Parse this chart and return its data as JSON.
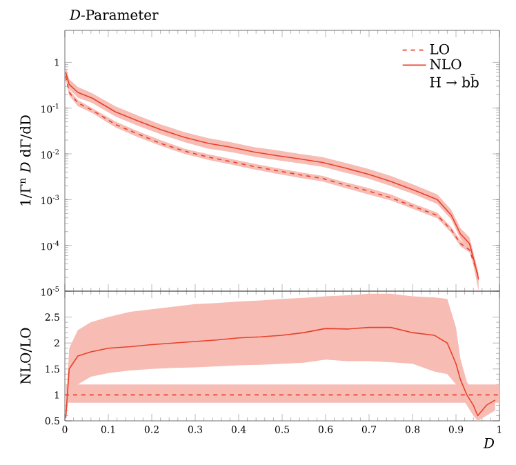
{
  "chart_data": [
    {
      "type": "line",
      "title": "*D*-Parameter",
      "ylabel": "1/Γ$^{n}$ *D* dΓ/dD",
      "log": "y",
      "legend": "top right",
      "tick_labels": "y",
      "annotations": [
        "H → bb̄"
      ],
      "xlim": [
        0,
        1
      ],
      "xticks": [
        0,
        0.1,
        0.2,
        0.3,
        0.4,
        0.5,
        0.6,
        0.7,
        0.8,
        0.9,
        1
      ],
      "ylim": [
        1e-05,
        5
      ],
      "yticks": [
        {
          "value": 1e-05,
          "label": "10$^{-5}$"
        },
        {
          "value": 0.0001,
          "label": "10$^{-4}$"
        },
        {
          "value": 0.001,
          "label": "10$^{-3}$"
        },
        {
          "value": 0.01,
          "label": "10$^{-2}$"
        },
        {
          "value": 0.1,
          "label": "10$^{-1}$"
        },
        1
      ],
      "x": [
        0.002,
        0.01,
        0.03,
        0.063,
        0.116,
        0.169,
        0.22,
        0.275,
        0.33,
        0.381,
        0.435,
        0.487,
        0.54,
        0.593,
        0.645,
        0.698,
        0.75,
        0.804,
        0.857,
        0.889,
        0.91,
        0.931,
        0.942,
        0.952
      ],
      "series": [
        {
          "name": "LO",
          "color": "#e8412a",
          "line_style": "dashed",
          "values": [
            0.5,
            0.22,
            0.13,
            0.09,
            0.044,
            0.027,
            0.017,
            0.0115,
            0.0085,
            0.0068,
            0.0053,
            0.0043,
            0.0035,
            0.0029,
            0.0021,
            0.00155,
            0.0011,
            0.0007,
            0.00045,
            0.00022,
            0.00011,
            8e-05,
            4e-05,
            2e-05
          ],
          "lower": [
            0.43,
            0.19,
            0.11,
            0.078,
            0.038,
            0.023,
            0.015,
            0.01,
            0.0074,
            0.0059,
            0.0046,
            0.0037,
            0.003,
            0.0025,
            0.0018,
            0.0013,
            0.00096,
            0.00061,
            0.00039,
            0.00019,
            9.6e-05,
            7e-05,
            3.5e-05,
            1.7e-05
          ],
          "upper": [
            0.58,
            0.25,
            0.15,
            0.1,
            0.051,
            0.031,
            0.02,
            0.013,
            0.0098,
            0.0078,
            0.0061,
            0.0049,
            0.004,
            0.0033,
            0.0024,
            0.0018,
            0.0013,
            0.0008,
            0.00052,
            0.00025,
            0.00013,
            9e-05,
            4.6e-05,
            2.3e-05
          ]
        },
        {
          "name": "NLO",
          "color": "#e8412a",
          "line_style": "solid",
          "values": [
            0.6,
            0.33,
            0.22,
            0.165,
            0.083,
            0.052,
            0.034,
            0.023,
            0.017,
            0.014,
            0.011,
            0.0092,
            0.0078,
            0.0065,
            0.0049,
            0.0036,
            0.0025,
            0.0016,
            0.001,
            0.00046,
            0.00018,
            0.00011,
            4.5e-05,
            1.8e-05
          ],
          "lower": [
            0.48,
            0.26,
            0.17,
            0.13,
            0.066,
            0.041,
            0.027,
            0.018,
            0.013,
            0.011,
            0.0087,
            0.0073,
            0.0062,
            0.0052,
            0.0039,
            0.0029,
            0.002,
            0.0013,
            0.0008,
            0.00037,
            0.00014,
            8e-05,
            3e-05,
            1e-05
          ],
          "upper": [
            0.78,
            0.43,
            0.29,
            0.21,
            0.11,
            0.068,
            0.044,
            0.03,
            0.022,
            0.018,
            0.014,
            0.012,
            0.01,
            0.0085,
            0.0064,
            0.0047,
            0.0033,
            0.0021,
            0.0013,
            0.0006,
            0.00024,
            0.00015,
            6e-05,
            2.4e-05
          ]
        }
      ]
    },
    {
      "type": "line",
      "xlabel": "*D*",
      "ylabel": "NLO/LO",
      "xlim": [
        0,
        1
      ],
      "xticks": [
        0,
        0.1,
        0.2,
        0.3,
        0.4,
        0.5,
        0.6,
        0.7,
        0.8,
        0.9,
        1
      ],
      "ylim": [
        0.5,
        3
      ],
      "yticks": [
        0.5,
        1,
        1.5,
        2,
        2.5
      ],
      "series": [
        {
          "color": "#e8412a",
          "line_style": "dashed",
          "x": [
            0,
            1
          ],
          "values": [
            1,
            1
          ],
          "lower": [
            0.85,
            0.85
          ],
          "upper": [
            1.2,
            1.2
          ]
        },
        {
          "color": "#e8412a",
          "line_style": "solid",
          "x": [
            0.002,
            0.01,
            0.03,
            0.06,
            0.1,
            0.15,
            0.2,
            0.25,
            0.3,
            0.35,
            0.4,
            0.45,
            0.5,
            0.55,
            0.6,
            0.65,
            0.7,
            0.75,
            0.8,
            0.85,
            0.88,
            0.9,
            0.91,
            0.925,
            0.94,
            0.95,
            0.97,
            0.99
          ],
          "values": [
            0.55,
            1.5,
            1.75,
            1.83,
            1.9,
            1.93,
            1.97,
            2.0,
            2.03,
            2.06,
            2.1,
            2.12,
            2.15,
            2.2,
            2.28,
            2.27,
            2.3,
            2.3,
            2.2,
            2.15,
            2.0,
            1.6,
            1.3,
            1.0,
            0.8,
            0.6,
            0.8,
            0.9
          ],
          "lower": [
            0.5,
            1.0,
            1.2,
            1.35,
            1.42,
            1.47,
            1.5,
            1.52,
            1.53,
            1.55,
            1.57,
            1.58,
            1.6,
            1.62,
            1.68,
            1.65,
            1.65,
            1.63,
            1.6,
            1.45,
            1.4,
            1.2,
            1.0,
            0.8,
            0.6,
            0.5,
            0.6,
            0.7
          ],
          "upper": [
            0.7,
            1.9,
            2.25,
            2.4,
            2.5,
            2.6,
            2.65,
            2.7,
            2.75,
            2.77,
            2.8,
            2.82,
            2.85,
            2.87,
            2.9,
            2.92,
            2.95,
            2.95,
            2.9,
            2.88,
            2.85,
            2.3,
            1.7,
            1.25,
            1.05,
            0.9,
            1.05,
            1.1
          ]
        }
      ]
    }
  ]
}
